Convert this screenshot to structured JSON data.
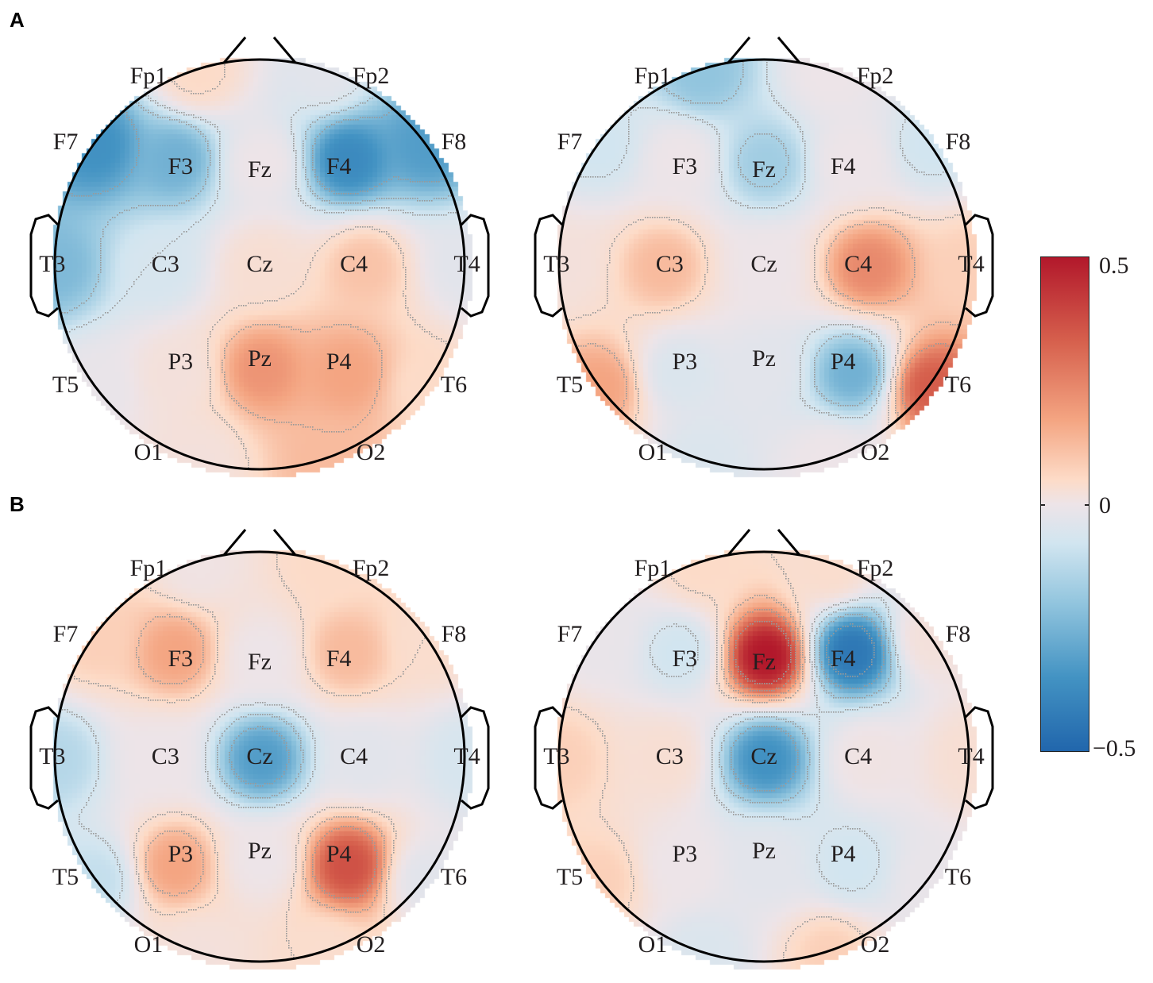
{
  "figure": {
    "panels": [
      {
        "label": "A"
      },
      {
        "label": "B"
      }
    ]
  },
  "electrode_labels": [
    "Fp1",
    "Fp2",
    "F7",
    "F3",
    "Fz",
    "F4",
    "F8",
    "T3",
    "C3",
    "Cz",
    "C4",
    "T4",
    "T5",
    "P3",
    "Pz",
    "P4",
    "T6",
    "O1",
    "O2"
  ],
  "colorbar": {
    "max_label": "0.5",
    "mid_label": "0",
    "min_label": "−0.5",
    "colors": [
      "#2166ac",
      "#4393c3",
      "#92c5de",
      "#d1e5f0",
      "#ede4e8",
      "#fddbc7",
      "#f4a582",
      "#d6604d",
      "#b2182b"
    ]
  },
  "chart_data": {
    "type": "heatmap",
    "subtype": "EEG scalp topography (10-20 system)",
    "title": "",
    "legend": {
      "type": "colorbar",
      "position": "right",
      "range": [
        -0.5,
        0.5
      ],
      "ticks": [
        -0.5,
        0,
        0.5
      ]
    },
    "electrodes": [
      "Fp1",
      "Fp2",
      "F7",
      "F3",
      "Fz",
      "F4",
      "F8",
      "T3",
      "C3",
      "Cz",
      "C4",
      "T4",
      "T5",
      "P3",
      "Pz",
      "P4",
      "T6",
      "O1",
      "O2"
    ],
    "maps": [
      {
        "panel": "A",
        "position": "left",
        "values": {
          "Fp1": 0.12,
          "Fp2": -0.05,
          "F7": -0.38,
          "F3": -0.3,
          "Fz": 0.0,
          "F4": -0.4,
          "F8": -0.35,
          "T3": -0.28,
          "C3": -0.1,
          "Cz": 0.08,
          "C4": 0.18,
          "T4": -0.05,
          "T5": -0.02,
          "P3": 0.05,
          "Pz": 0.28,
          "P4": 0.25,
          "T6": 0.12,
          "O1": 0.05,
          "O2": 0.2
        }
      },
      {
        "panel": "A",
        "position": "right",
        "values": {
          "Fp1": -0.25,
          "Fp2": 0.0,
          "F7": -0.12,
          "F3": 0.0,
          "Fz": -0.22,
          "F4": 0.0,
          "F8": -0.12,
          "T3": 0.05,
          "C3": 0.2,
          "Cz": 0.0,
          "C4": 0.3,
          "T4": 0.15,
          "T5": 0.25,
          "P3": -0.08,
          "Pz": -0.05,
          "P4": -0.3,
          "T6": 0.38,
          "O1": -0.08,
          "O2": 0.0
        }
      },
      {
        "panel": "B",
        "position": "left",
        "values": {
          "Fp1": 0.02,
          "Fp2": 0.12,
          "F7": 0.15,
          "F3": 0.25,
          "Fz": 0.0,
          "F4": 0.2,
          "F8": 0.1,
          "T3": -0.18,
          "C3": 0.0,
          "Cz": -0.35,
          "C4": -0.05,
          "T4": -0.1,
          "T5": -0.15,
          "P3": 0.25,
          "Pz": 0.0,
          "P4": 0.4,
          "T6": -0.05,
          "O1": 0.05,
          "O2": 0.1
        }
      },
      {
        "panel": "B",
        "position": "right",
        "values": {
          "Fp1": 0.12,
          "Fp2": 0.1,
          "F7": -0.02,
          "F3": -0.12,
          "Fz": 0.5,
          "F4": -0.45,
          "F8": 0.05,
          "T3": 0.15,
          "C3": 0.08,
          "Cz": -0.38,
          "C4": 0.02,
          "T4": 0.08,
          "T5": 0.15,
          "P3": 0.0,
          "Pz": -0.05,
          "P4": -0.12,
          "T6": -0.02,
          "O1": -0.08,
          "O2": 0.15
        }
      }
    ]
  }
}
